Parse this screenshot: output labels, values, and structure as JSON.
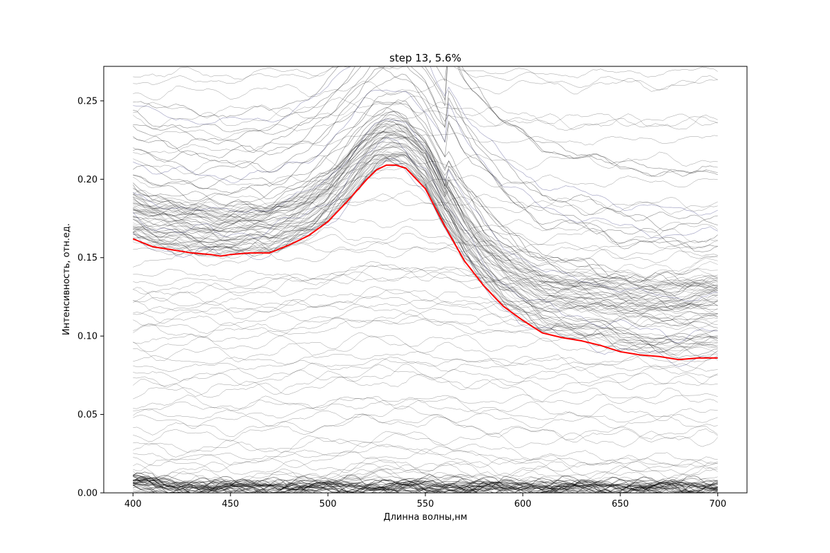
{
  "chart_data": {
    "type": "line",
    "title": "step 13, 5.6%",
    "xlabel": "Длинна волны,нм",
    "ylabel": "Интенсивность, отн.ед.",
    "xlim": [
      385,
      715
    ],
    "ylim": [
      0.0,
      0.272
    ],
    "xticks": [
      {
        "value": 400,
        "label": "400"
      },
      {
        "value": 450,
        "label": "450"
      },
      {
        "value": 500,
        "label": "500"
      },
      {
        "value": 550,
        "label": "550"
      },
      {
        "value": 600,
        "label": "600"
      },
      {
        "value": 650,
        "label": "650"
      },
      {
        "value": 700,
        "label": "700"
      }
    ],
    "yticks": [
      {
        "value": 0.0,
        "label": "0.00"
      },
      {
        "value": 0.05,
        "label": "0.05"
      },
      {
        "value": 0.1,
        "label": "0.10"
      },
      {
        "value": 0.15,
        "label": "0.15"
      },
      {
        "value": 0.2,
        "label": "0.20"
      },
      {
        "value": 0.25,
        "label": "0.25"
      }
    ],
    "grid": false,
    "colors": {
      "spectra": "#000000",
      "highlight_spectra": "#1f1f6e",
      "mean": "#ff0000"
    },
    "series": [
      {
        "color": "#ff0000",
        "role": "mean",
        "x": [
          400,
          410,
          420,
          430,
          440,
          445,
          450,
          460,
          470,
          480,
          490,
          500,
          510,
          520,
          525,
          530,
          535,
          540,
          550,
          560,
          570,
          580,
          590,
          600,
          610,
          620,
          630,
          640,
          650,
          660,
          670,
          680,
          690,
          700
        ],
        "y": [
          0.162,
          0.157,
          0.155,
          0.153,
          0.152,
          0.151,
          0.152,
          0.153,
          0.153,
          0.158,
          0.164,
          0.173,
          0.186,
          0.2,
          0.206,
          0.209,
          0.209,
          0.207,
          0.194,
          0.17,
          0.148,
          0.132,
          0.119,
          0.11,
          0.102,
          0.099,
          0.097,
          0.094,
          0.09,
          0.088,
          0.087,
          0.085,
          0.086,
          0.086
        ]
      }
    ],
    "spectra_groups": [
      {
        "role": "bumped",
        "base_levels": [
          0.15,
          0.152,
          0.154,
          0.156,
          0.158,
          0.16,
          0.162,
          0.164,
          0.166,
          0.168,
          0.17,
          0.172,
          0.174,
          0.176,
          0.178,
          0.18,
          0.182,
          0.185,
          0.188,
          0.192,
          0.196,
          0.2,
          0.205,
          0.21,
          0.215,
          0.22,
          0.225,
          0.23,
          0.235,
          0.24
        ],
        "bump_peak": 530,
        "bump_height": 0.058
      },
      {
        "role": "flat",
        "base_levels": [
          0.255,
          0.262,
          0.268,
          0.245,
          0.238,
          0.228,
          0.218,
          0.208,
          0.198,
          0.188,
          0.18,
          0.17,
          0.165,
          0.16,
          0.155,
          0.148,
          0.14,
          0.135,
          0.13,
          0.127,
          0.125,
          0.122,
          0.119,
          0.116,
          0.113,
          0.11,
          0.106,
          0.102,
          0.098,
          0.095,
          0.09,
          0.085,
          0.08,
          0.075,
          0.072,
          0.068,
          0.064,
          0.058,
          0.054,
          0.05,
          0.046,
          0.042,
          0.037,
          0.03,
          0.027,
          0.024,
          0.021,
          0.018,
          0.015,
          0.012,
          0.009,
          0.007,
          0.005,
          0.004,
          0.003,
          0.002,
          0.001,
          0.0005
        ]
      }
    ]
  }
}
